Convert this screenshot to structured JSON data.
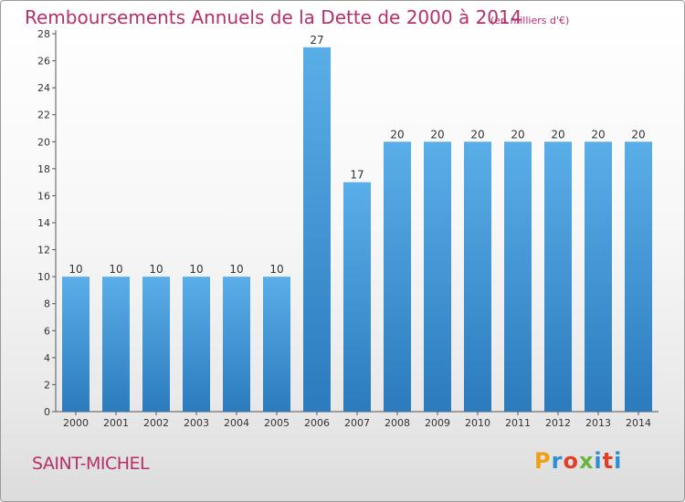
{
  "header": {
    "title": "Remboursements Annuels de la Dette de 2000 à 2014",
    "subtitle": "(en milliers d'€)"
  },
  "footer": {
    "commune": "SAINT-MICHEL",
    "brand": "Proxiti",
    "brand_colors": [
      "#f0a010",
      "#2c8fd6",
      "#e0402a",
      "#6cb33e",
      "#2c8fd6",
      "#e0402a",
      "#2c8fd6"
    ]
  },
  "colors": {
    "title": "#b5306a",
    "bar_light": "#5aaee8",
    "bar_dark": "#2b7bbd",
    "axis": "#555555"
  },
  "chart_data": {
    "type": "bar",
    "title": "Remboursements Annuels de la Dette de 2000 à 2014",
    "subtitle": "(en milliers d'€)",
    "categories": [
      "2000",
      "2001",
      "2002",
      "2003",
      "2004",
      "2005",
      "2006",
      "2007",
      "2008",
      "2009",
      "2010",
      "2011",
      "2012",
      "2013",
      "2014"
    ],
    "values": [
      10,
      10,
      10,
      10,
      10,
      10,
      27,
      17,
      20,
      20,
      20,
      20,
      20,
      20,
      20
    ],
    "data_labels": [
      "10",
      "10",
      "10",
      "10",
      "10",
      "10",
      "27",
      "17",
      "20",
      "20",
      "20",
      "20",
      "20",
      "20",
      "20"
    ],
    "ylim": [
      0,
      28
    ],
    "yticks": [
      "0",
      "2",
      "4",
      "6",
      "8",
      "10",
      "12",
      "14",
      "16",
      "18",
      "20",
      "22",
      "24",
      "26",
      "28"
    ],
    "xlabel": "",
    "ylabel": "",
    "grid": false
  }
}
